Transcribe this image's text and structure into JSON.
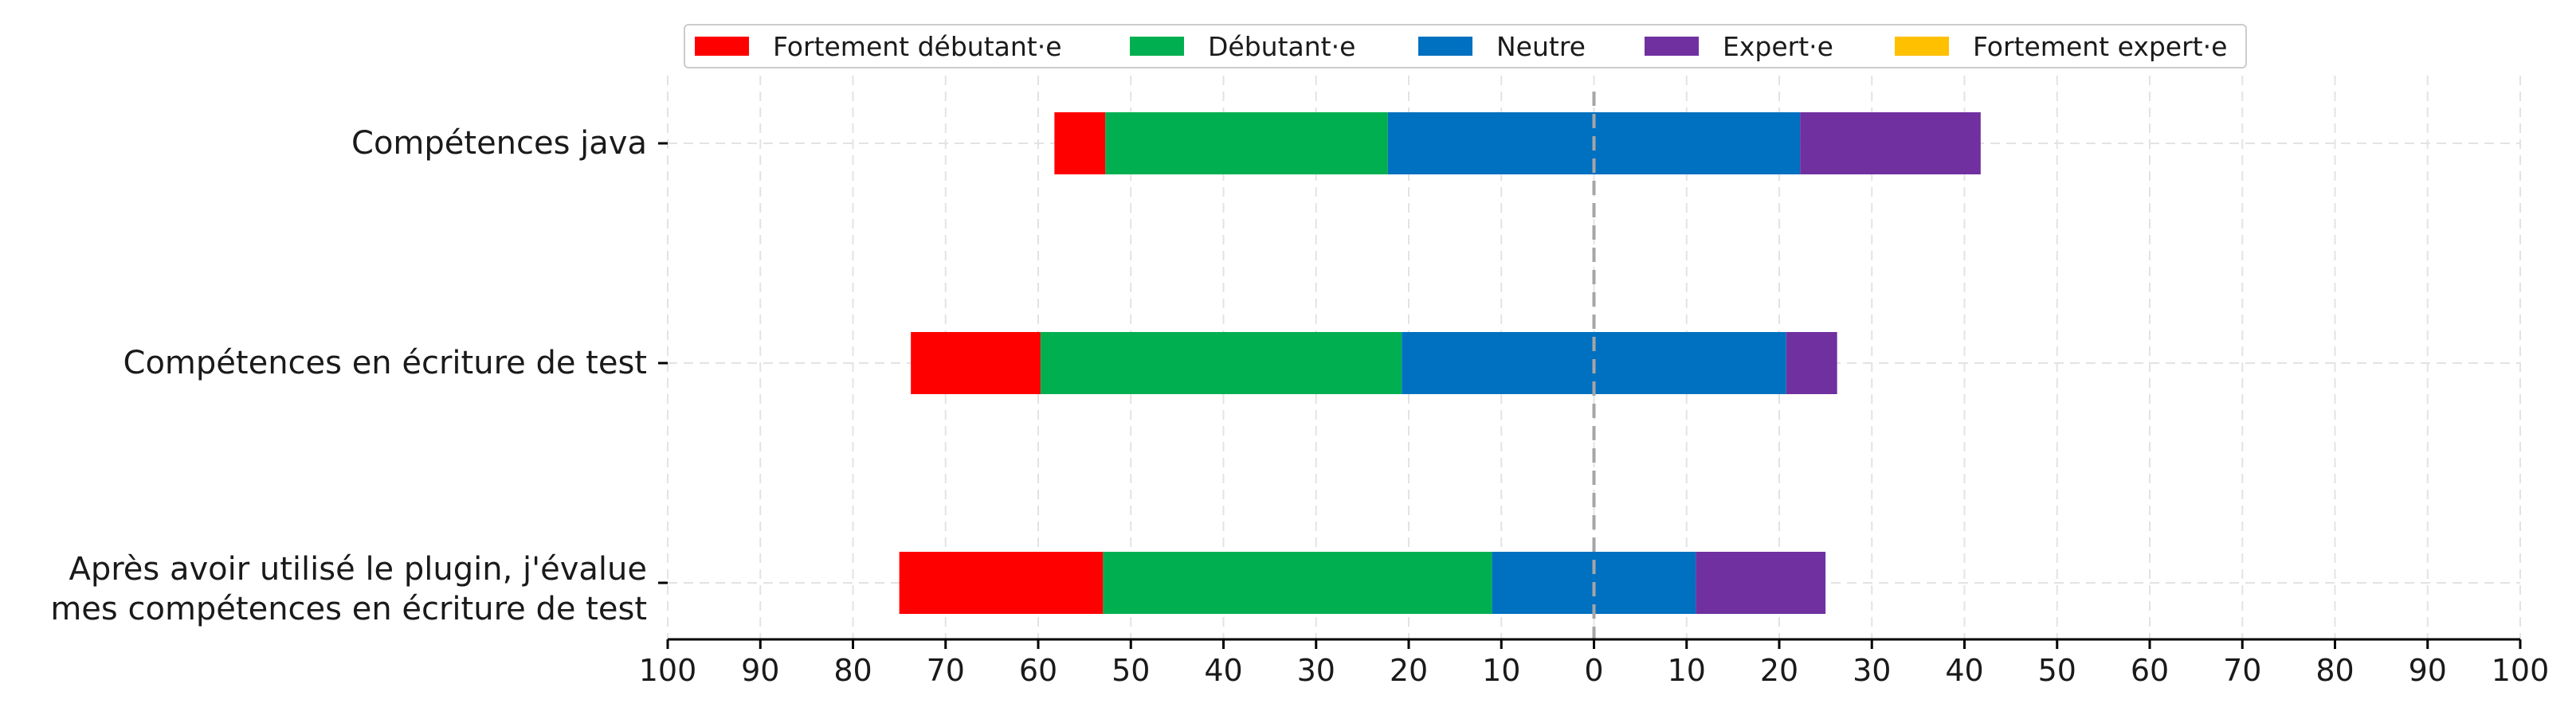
{
  "chart_data": {
    "type": "bar",
    "orientation": "horizontal",
    "stacked": "diverging",
    "categories": [
      "Compétences java",
      "Compétences en écriture de test",
      "Après avoir utilisé le plugin, j'évalue\nmes compétences en écriture de test"
    ],
    "series": [
      {
        "name": "Fortement débutant·e",
        "color": "#ff0000",
        "values": [
          5.5,
          14,
          22
        ]
      },
      {
        "name": "Débutant·e",
        "color": "#00b050",
        "values": [
          30.5,
          39,
          42
        ]
      },
      {
        "name": "Neutre",
        "color": "#0070c0",
        "values": [
          44.5,
          41.5,
          22
        ]
      },
      {
        "name": "Expert·e",
        "color": "#7030a0",
        "values": [
          19.5,
          5.5,
          14
        ]
      },
      {
        "name": "Fortement expert·e",
        "color": "#ffc000",
        "values": [
          0,
          0,
          0
        ]
      }
    ],
    "neutral_series": "Neutre",
    "xlim": [
      -100,
      100
    ],
    "xticks": [
      -100,
      -90,
      -80,
      -70,
      -60,
      -50,
      -40,
      -30,
      -20,
      -10,
      0,
      10,
      20,
      30,
      40,
      50,
      60,
      70,
      80,
      90,
      100
    ],
    "xtick_labels": [
      "100",
      "90",
      "80",
      "70",
      "60",
      "50",
      "40",
      "30",
      "20",
      "10",
      "0",
      "10",
      "20",
      "30",
      "40",
      "50",
      "60",
      "70",
      "80",
      "90",
      "100"
    ],
    "xlabel": "",
    "ylabel": "",
    "title": "",
    "grid": true,
    "legend_position": "top"
  }
}
